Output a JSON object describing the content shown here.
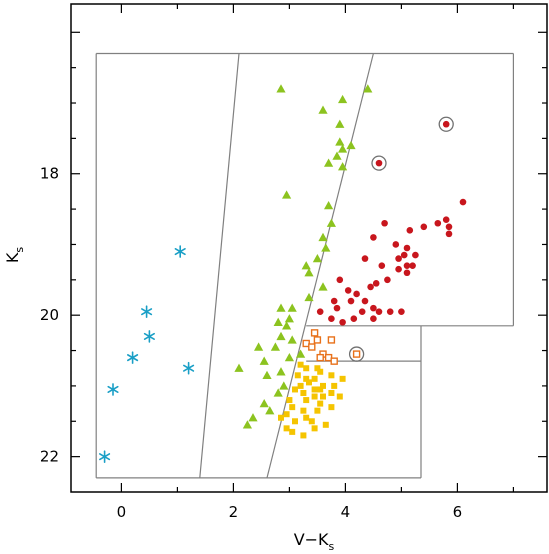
{
  "chart_data": {
    "type": "scatter",
    "xlabel_main": "V−K",
    "xlabel_sub": "s",
    "ylabel_main": "K",
    "ylabel_sub": "s",
    "xlim": [
      -0.9,
      7.6
    ],
    "ylim": [
      22.5,
      15.6
    ],
    "y_inverted": true,
    "x_ticks": [
      0,
      2,
      4,
      6
    ],
    "x_tick_labels": [
      "0",
      "2",
      "4",
      "6"
    ],
    "y_ticks": [
      18,
      20,
      22
    ],
    "y_tick_labels": [
      "18",
      "20",
      "22"
    ],
    "legend": "none",
    "grid": false,
    "colors": {
      "asterisk": "#1a9fc6",
      "triangle": "#8cc31f",
      "red_dot": "#c8161d",
      "open_square": "#e8711a",
      "filled_square": "#f5c400",
      "region_line": "#808080",
      "circle_ring": "#707070"
    },
    "series": [
      {
        "marker": "asterisk",
        "points": [
          [
            -0.3,
            22.0
          ],
          [
            -0.15,
            21.05
          ],
          [
            0.2,
            20.6
          ],
          [
            0.5,
            20.3
          ],
          [
            0.45,
            19.95
          ],
          [
            1.05,
            19.1
          ],
          [
            1.2,
            20.75
          ]
        ]
      },
      {
        "marker": "triangle",
        "points": [
          [
            2.85,
            16.8
          ],
          [
            3.95,
            16.95
          ],
          [
            4.4,
            16.8
          ],
          [
            3.6,
            17.1
          ],
          [
            3.9,
            17.3
          ],
          [
            3.9,
            17.55
          ],
          [
            3.95,
            17.65
          ],
          [
            4.1,
            17.6
          ],
          [
            3.85,
            17.75
          ],
          [
            3.95,
            17.9
          ],
          [
            3.7,
            17.85
          ],
          [
            2.95,
            18.3
          ],
          [
            3.7,
            18.45
          ],
          [
            3.75,
            18.7
          ],
          [
            3.6,
            18.9
          ],
          [
            3.65,
            19.05
          ],
          [
            3.5,
            19.2
          ],
          [
            3.3,
            19.3
          ],
          [
            3.35,
            19.4
          ],
          [
            3.6,
            19.6
          ],
          [
            3.35,
            19.75
          ],
          [
            3.05,
            19.9
          ],
          [
            2.85,
            19.9
          ],
          [
            3.0,
            20.05
          ],
          [
            2.8,
            20.1
          ],
          [
            2.85,
            20.3
          ],
          [
            2.95,
            20.15
          ],
          [
            3.05,
            20.35
          ],
          [
            3.2,
            20.55
          ],
          [
            3.0,
            20.6
          ],
          [
            2.75,
            20.45
          ],
          [
            2.55,
            20.65
          ],
          [
            2.45,
            20.45
          ],
          [
            2.85,
            20.8
          ],
          [
            2.6,
            20.85
          ],
          [
            2.1,
            20.75
          ],
          [
            2.9,
            21.0
          ],
          [
            2.8,
            21.1
          ],
          [
            2.55,
            21.25
          ],
          [
            2.65,
            21.35
          ],
          [
            2.35,
            21.45
          ],
          [
            2.25,
            21.55
          ]
        ]
      },
      {
        "marker": "red_dot",
        "points": [
          [
            5.8,
            17.3
          ],
          [
            4.6,
            17.85
          ],
          [
            6.1,
            18.4
          ],
          [
            5.8,
            18.65
          ],
          [
            5.65,
            18.7
          ],
          [
            5.85,
            18.75
          ],
          [
            5.85,
            18.85
          ],
          [
            4.7,
            18.7
          ],
          [
            5.4,
            18.75
          ],
          [
            5.15,
            18.8
          ],
          [
            4.5,
            18.9
          ],
          [
            4.9,
            19.0
          ],
          [
            5.1,
            19.05
          ],
          [
            5.05,
            19.15
          ],
          [
            4.95,
            19.2
          ],
          [
            5.25,
            19.15
          ],
          [
            5.2,
            19.3
          ],
          [
            5.1,
            19.3
          ],
          [
            4.35,
            19.2
          ],
          [
            4.65,
            19.3
          ],
          [
            4.75,
            19.5
          ],
          [
            4.55,
            19.55
          ],
          [
            4.95,
            19.35
          ],
          [
            5.1,
            19.4
          ],
          [
            4.45,
            19.6
          ],
          [
            3.9,
            19.5
          ],
          [
            4.05,
            19.65
          ],
          [
            4.2,
            19.7
          ],
          [
            4.1,
            19.8
          ],
          [
            3.8,
            19.8
          ],
          [
            4.35,
            19.8
          ],
          [
            4.5,
            19.9
          ],
          [
            3.85,
            19.9
          ],
          [
            4.3,
            19.95
          ],
          [
            4.6,
            19.95
          ],
          [
            4.15,
            20.05
          ],
          [
            4.5,
            20.05
          ],
          [
            3.95,
            20.1
          ],
          [
            3.75,
            20.05
          ],
          [
            3.55,
            19.95
          ],
          [
            4.8,
            19.95
          ],
          [
            5.0,
            19.95
          ]
        ]
      },
      {
        "marker": "open_square",
        "points": [
          [
            4.2,
            20.55
          ],
          [
            3.45,
            20.25
          ],
          [
            3.5,
            20.35
          ],
          [
            3.3,
            20.4
          ],
          [
            3.75,
            20.35
          ],
          [
            3.4,
            20.45
          ],
          [
            3.6,
            20.55
          ],
          [
            3.7,
            20.6
          ],
          [
            3.55,
            20.6
          ],
          [
            3.8,
            20.65
          ]
        ]
      },
      {
        "marker": "filled_square",
        "points": [
          [
            3.2,
            20.7
          ],
          [
            3.3,
            20.75
          ],
          [
            3.5,
            20.75
          ],
          [
            3.55,
            20.8
          ],
          [
            3.75,
            20.85
          ],
          [
            3.15,
            20.85
          ],
          [
            3.3,
            20.9
          ],
          [
            3.45,
            20.9
          ],
          [
            3.95,
            20.9
          ],
          [
            3.35,
            20.95
          ],
          [
            3.6,
            21.0
          ],
          [
            3.8,
            21.0
          ],
          [
            3.2,
            21.0
          ],
          [
            3.45,
            21.05
          ],
          [
            3.55,
            21.05
          ],
          [
            3.1,
            21.05
          ],
          [
            3.75,
            21.1
          ],
          [
            3.25,
            21.1
          ],
          [
            3.45,
            21.15
          ],
          [
            3.6,
            21.15
          ],
          [
            3.9,
            21.15
          ],
          [
            3.0,
            21.2
          ],
          [
            3.3,
            21.2
          ],
          [
            3.55,
            21.25
          ],
          [
            3.05,
            21.3
          ],
          [
            3.75,
            21.3
          ],
          [
            3.25,
            21.35
          ],
          [
            3.5,
            21.35
          ],
          [
            2.95,
            21.4
          ],
          [
            3.3,
            21.45
          ],
          [
            2.85,
            21.45
          ],
          [
            3.4,
            21.5
          ],
          [
            3.1,
            21.5
          ],
          [
            3.65,
            21.55
          ],
          [
            2.95,
            21.6
          ],
          [
            3.45,
            21.6
          ],
          [
            3.25,
            21.7
          ],
          [
            3.05,
            21.65
          ]
        ]
      }
    ],
    "circled_points": [
      [
        5.8,
        17.3
      ],
      [
        4.6,
        17.85
      ],
      [
        4.2,
        20.55
      ]
    ],
    "region_segments": [
      [
        [
          -0.45,
          16.3
        ],
        [
          7.0,
          16.3
        ]
      ],
      [
        [
          -0.45,
          16.3
        ],
        [
          -0.45,
          22.3
        ]
      ],
      [
        [
          -0.45,
          22.3
        ],
        [
          5.35,
          22.3
        ]
      ],
      [
        [
          7.0,
          16.3
        ],
        [
          7.0,
          20.15
        ]
      ],
      [
        [
          5.35,
          20.15
        ],
        [
          7.0,
          20.15
        ]
      ],
      [
        [
          5.35,
          20.15
        ],
        [
          5.35,
          22.3
        ]
      ],
      [
        [
          3.3,
          20.65
        ],
        [
          5.35,
          20.65
        ]
      ],
      [
        [
          3.3,
          20.15
        ],
        [
          5.35,
          20.15
        ]
      ],
      [
        [
          2.1,
          16.3
        ],
        [
          1.4,
          22.3
        ]
      ],
      [
        [
          4.5,
          16.3
        ],
        [
          2.6,
          22.3
        ]
      ]
    ]
  }
}
